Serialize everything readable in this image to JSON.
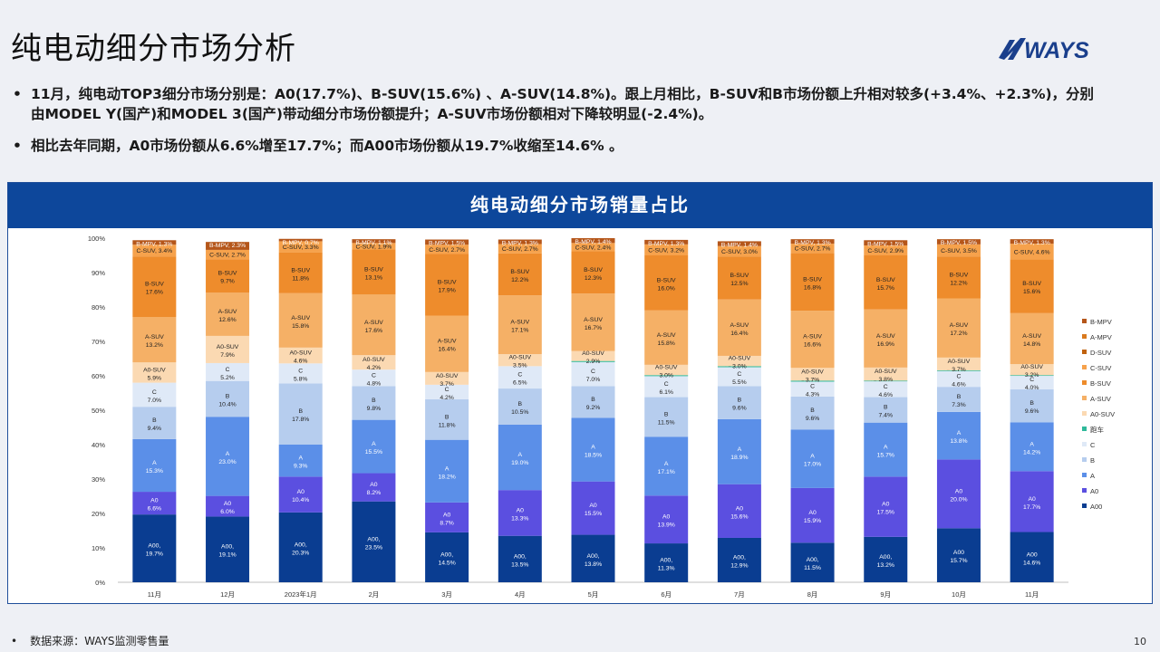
{
  "page": {
    "title": "纯电动细分市场分析",
    "logo_text": "WAYS",
    "bullets": [
      "11月，纯电动TOP3细分市场分别是：A0(17.7%)、B-SUV(15.6%) 、A-SUV(14.8%)。跟上月相比，B-SUV和B市场份额上升相对较多(+3.4%、+2.3%)，分别由MODEL Y(国产)和MODEL 3(国产)带动细分市场份额提升；A-SUV市场份额相对下降较明显(-2.4%)。",
      "相比去年同期，A0市场份额从6.6%增至17.7%；而A00市场份额从19.7%收缩至14.6% 。"
    ],
    "source": "数据来源：WAYS监测零售量",
    "page_number": "10",
    "colors": {
      "header": "#0d479b",
      "logo": "#1a3f8c"
    }
  },
  "chart_data": {
    "type": "bar",
    "stacked": true,
    "title": "纯电动细分市场销量占比",
    "ylim": [
      0,
      100
    ],
    "yticks": [
      "0%",
      "10%",
      "20%",
      "30%",
      "40%",
      "50%",
      "60%",
      "70%",
      "80%",
      "90%",
      "100%"
    ],
    "categories": [
      "11月",
      "12月",
      "2023年1月",
      "2月",
      "3月",
      "4月",
      "5月",
      "6月",
      "7月",
      "8月",
      "9月",
      "10月",
      "11月"
    ],
    "legend_position": "right",
    "series": [
      {
        "name": "A00",
        "color": "#0a3d91",
        "label": "A00,",
        "labels": [
          "A00,",
          "A00,",
          "A00,",
          "A00,",
          "A00,",
          "A00,",
          "A00,",
          "A00,",
          "A00,",
          "A00,",
          "A00,",
          "A00",
          "A00"
        ],
        "values": [
          19.7,
          19.1,
          20.3,
          23.5,
          14.5,
          13.5,
          13.8,
          11.3,
          12.9,
          11.5,
          13.2,
          15.7,
          14.6
        ]
      },
      {
        "name": "A0",
        "color": "#5b4fe0",
        "labels": [
          "A0",
          "A0",
          "A0",
          "A0",
          "A0",
          "A0",
          "A0",
          "A0",
          "A0",
          "A0",
          "A0",
          "A0",
          "A0"
        ],
        "values": [
          6.6,
          6.0,
          10.4,
          8.2,
          8.7,
          13.3,
          15.5,
          13.9,
          15.6,
          15.9,
          17.5,
          20.0,
          17.7
        ]
      },
      {
        "name": "A",
        "color": "#5b8fe8",
        "labels": [
          "A",
          "A",
          "A",
          "A",
          "A",
          "A",
          "A",
          "A",
          "A",
          "A",
          "A",
          "A",
          "A"
        ],
        "values": [
          15.3,
          23.0,
          9.3,
          15.5,
          18.2,
          19.0,
          18.5,
          17.1,
          18.9,
          17.0,
          15.7,
          13.8,
          14.2
        ]
      },
      {
        "name": "B",
        "color": "#b6cdee",
        "labels": [
          "B",
          "B",
          "B",
          "B",
          "B",
          "B",
          "B",
          "B",
          "B",
          "B",
          "B",
          "B",
          "B"
        ],
        "values": [
          9.4,
          10.4,
          17.8,
          9.8,
          11.8,
          10.5,
          9.2,
          11.5,
          9.6,
          9.6,
          7.4,
          7.3,
          9.6
        ]
      },
      {
        "name": "C",
        "color": "#dfe9f7",
        "labels": [
          "C",
          "C",
          "C",
          "C",
          "C",
          "C",
          "C",
          "C",
          "C",
          "C",
          "C",
          "C",
          "C"
        ],
        "values": [
          7.0,
          5.2,
          5.8,
          4.8,
          4.2,
          6.5,
          7.0,
          6.1,
          5.5,
          4.3,
          4.6,
          4.6,
          4.0
        ]
      },
      {
        "name": "跑车",
        "color": "#2fb99a",
        "labels": [
          "跑车",
          "跑车",
          "跑车",
          "跑车",
          "跑车",
          "跑车",
          "跑车",
          "跑车",
          "跑车",
          "跑车",
          "跑车,",
          "跑车,",
          "跑车,"
        ],
        "values": [
          0,
          0,
          0,
          0,
          0,
          0,
          0.3,
          0.3,
          0.3,
          0.3,
          0.2,
          0.2,
          0.1
        ]
      },
      {
        "name": "A0-SUV",
        "color": "#fbd9b2",
        "labels": [
          "A0-SUV",
          "A0-SUV",
          "A0-SUV",
          "A0-SUV",
          "A0-SUV",
          "A0-SUV",
          "A0-SUV",
          "A0-SUV",
          "A0-SUV",
          "A0-SUV",
          "A0-SUV",
          "A0-SUV",
          "A0-SUV"
        ],
        "values": [
          5.9,
          7.9,
          4.6,
          4.2,
          3.7,
          3.5,
          2.9,
          3.0,
          3.0,
          3.7,
          3.8,
          3.7,
          3.2
        ]
      },
      {
        "name": "A-SUV",
        "color": "#f5b066",
        "labels": [
          "A-SUV",
          "A-SUV",
          "A-SUV",
          "A-SUV",
          "A-SUV",
          "A-SUV",
          "A-SUV",
          "A-SUV",
          "A-SUV",
          "A-SUV",
          "A-SUV",
          "A-SUV",
          "A-SUV"
        ],
        "values": [
          13.2,
          12.6,
          15.8,
          17.6,
          16.4,
          17.1,
          16.7,
          15.8,
          16.4,
          16.6,
          16.9,
          17.2,
          14.8
        ]
      },
      {
        "name": "B-SUV",
        "color": "#ee8c2c",
        "labels": [
          "B-SUV",
          "B-SUV",
          "B-SUV",
          "B-SUV",
          "B-SUV",
          "B-SUV",
          "B-SUV",
          "B-SUV",
          "B-SUV",
          "B-SUV",
          "B-SUV",
          "B-SUV",
          "B-SUV"
        ],
        "values": [
          17.6,
          9.7,
          11.8,
          13.1,
          17.9,
          12.2,
          12.3,
          16.0,
          12.5,
          16.8,
          15.7,
          12.2,
          15.6
        ]
      },
      {
        "name": "C-SUV",
        "color": "#f6a24c",
        "labels": [
          "C-SUV",
          "C-SUV",
          "C-SUV",
          "C-SUV",
          "C-SUV",
          "C-SUV",
          "C-SUV",
          "C-SUV",
          "C-SUV",
          "C-SUV",
          "C-SUV",
          "C-SUV",
          "C-SUV"
        ],
        "values": [
          3.4,
          2.7,
          3.3,
          1.9,
          2.7,
          2.7,
          2.4,
          3.2,
          3.0,
          2.7,
          2.9,
          3.5,
          4.6
        ]
      },
      {
        "name": "D-SUV",
        "color": "#c0620e",
        "labels": [
          "D-SUV",
          "D-SUV",
          "D-SUV",
          "D-SUV",
          "D-SUV",
          "D-SUV",
          "D-SUV",
          "D-SUV",
          "D-SUV",
          "D-SUV",
          "D-SUV",
          "D-SUV",
          "D-SUV"
        ],
        "values": [
          0,
          0,
          0,
          0,
          0,
          0,
          0,
          0,
          0,
          0,
          0,
          0,
          0
        ]
      },
      {
        "name": "A-MPV",
        "color": "#d97a1e",
        "labels": [
          "A-MPV",
          "A-MPV",
          "A-MPV",
          "A-MPV",
          "A-MPV",
          "A-MPV",
          "A-MPV",
          "A-MPV",
          "A-MPV",
          "A-MPV",
          "A-MPV",
          "A-MPV",
          "A-MPV"
        ],
        "values": [
          0,
          0,
          0,
          0,
          0,
          0,
          0,
          0,
          0,
          0,
          0,
          0,
          0
        ]
      },
      {
        "name": "B-MPV",
        "color": "#b5561a",
        "labels": [
          "B-MPV,",
          "B-MPV,",
          "B-MPV,",
          "B-MPV,",
          "B-MPV,",
          "B-MPV,",
          "B-MPV,",
          "B-MPV,",
          "B-MPV,",
          "B-MPV,",
          "B-MPV,",
          "B-MPV,",
          "B-MPV,"
        ],
        "values": [
          1.3,
          2.3,
          0.7,
          1.1,
          1.5,
          1.3,
          1.4,
          1.3,
          1.4,
          1.3,
          1.5,
          1.5,
          1.3
        ]
      }
    ],
    "label_style": {
      "inline_series": [
        "C-SUV",
        "B-MPV"
      ],
      "inline_series_rows": [
        "跑车"
      ],
      "inline_rows_cols": [
        10,
        11,
        12
      ]
    },
    "legend_order": [
      "B-MPV",
      "A-MPV",
      "D-SUV",
      "C-SUV",
      "B-SUV",
      "A-SUV",
      "A0-SUV",
      "跑车",
      "C",
      "B",
      "A",
      "A0",
      "A00"
    ]
  }
}
